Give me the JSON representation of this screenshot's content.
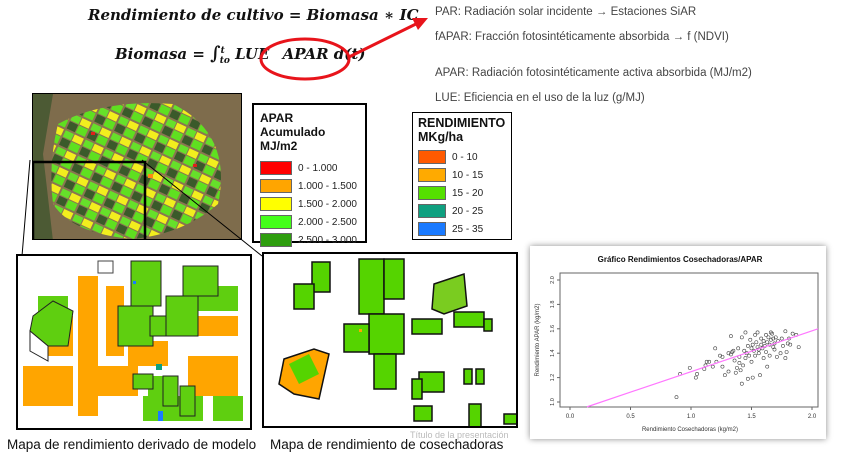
{
  "formulas": {
    "yield": "Rendimiento de cultivo = Biomasa ∗ IC",
    "biomass_lhs": "Biomasa = ",
    "biomass_int": "∫",
    "biomass_sup": "t",
    "biomass_sub": "to",
    "biomass_lue": "LUE",
    "biomass_apar": "APAR d(t)"
  },
  "definitions": [
    "PAR: Radiación solar incidente → Estaciones SiAR",
    "fAPAR: Fracción fotosintéticamente absorbida → f (NDVI)",
    "APAR: Radiación fotosintéticamente activa absorbida (MJ/m2)",
    "LUE: Eficiencia en el uso de la luz (g/MJ)"
  ],
  "legend_apar": {
    "title": "APAR Acumulado",
    "unit": "MJ/m2",
    "items": [
      {
        "label": "0 - 1.000",
        "color": "#ff0000"
      },
      {
        "label": "1.000 - 1.500",
        "color": "#ffa500"
      },
      {
        "label": "1.500 - 2.000",
        "color": "#ffff00"
      },
      {
        "label": "2.000 - 2.500",
        "color": "#44ff1a"
      },
      {
        "label": "2.500 - 3.000",
        "color": "#2e9e0e"
      }
    ]
  },
  "legend_rend": {
    "title": "RENDIMIENTO",
    "unit": "MKg/ha",
    "items": [
      {
        "label": "0 - 10",
        "color": "#ff5a00"
      },
      {
        "label": "10 - 15",
        "color": "#ffaa00"
      },
      {
        "label": "15 - 20",
        "color": "#55e000"
      },
      {
        "label": "20 - 25",
        "color": "#0fa080"
      },
      {
        "label": "25 - 35",
        "color": "#1a7aff"
      }
    ]
  },
  "captions": {
    "model_map": "Mapa de rendimiento derivado de modelo",
    "harvester_map": "Mapa de rendimiento de cosechadoras",
    "watermark": "Título de la presentación"
  },
  "chart_data": {
    "type": "scatter",
    "title": "Gráfico Rendimientos Cosechadoras/APAR",
    "xlabel": "Rendimiento Cosechadoras (kg/m2)",
    "ylabel": "Rendimiento APAR (kg/m2)",
    "xlim": [
      0.0,
      2.0
    ],
    "ylim": [
      1.0,
      2.0
    ],
    "xticks": [
      "0.0",
      "0.5",
      "1.0",
      "1.5",
      "2.0"
    ],
    "yticks": [
      "1.0",
      "1.2",
      "1.4",
      "1.6",
      "1.8",
      "2.0"
    ],
    "regression_line": {
      "color": "#ff66ff",
      "x": [
        0.14,
        2.08
      ],
      "y": [
        0.96,
        1.6
      ]
    },
    "points": [
      [
        0.88,
        1.04
      ],
      [
        0.91,
        1.23
      ],
      [
        0.99,
        1.28
      ],
      [
        1.04,
        1.2
      ],
      [
        1.05,
        1.23
      ],
      [
        1.11,
        1.27
      ],
      [
        1.12,
        1.3
      ],
      [
        1.13,
        1.33
      ],
      [
        1.15,
        1.33
      ],
      [
        1.18,
        1.29
      ],
      [
        1.2,
        1.44
      ],
      [
        1.21,
        1.33
      ],
      [
        1.24,
        1.38
      ],
      [
        1.26,
        1.37
      ],
      [
        1.26,
        1.29
      ],
      [
        1.28,
        1.22
      ],
      [
        1.31,
        1.4
      ],
      [
        1.31,
        1.25
      ],
      [
        1.33,
        1.54
      ],
      [
        1.33,
        1.39
      ],
      [
        1.34,
        1.41
      ],
      [
        1.35,
        1.42
      ],
      [
        1.36,
        1.34
      ],
      [
        1.37,
        1.24
      ],
      [
        1.38,
        1.28
      ],
      [
        1.39,
        1.44
      ],
      [
        1.4,
        1.32
      ],
      [
        1.4,
        1.37
      ],
      [
        1.41,
        1.26
      ],
      [
        1.42,
        1.53
      ],
      [
        1.42,
        1.15
      ],
      [
        1.43,
        1.3
      ],
      [
        1.44,
        1.42
      ],
      [
        1.45,
        1.57
      ],
      [
        1.45,
        1.36
      ],
      [
        1.46,
        1.4
      ],
      [
        1.47,
        1.19
      ],
      [
        1.47,
        1.46
      ],
      [
        1.48,
        1.38
      ],
      [
        1.49,
        1.51
      ],
      [
        1.5,
        1.33
      ],
      [
        1.5,
        1.44
      ],
      [
        1.51,
        1.2
      ],
      [
        1.51,
        1.47
      ],
      [
        1.52,
        1.42
      ],
      [
        1.53,
        1.55
      ],
      [
        1.53,
        1.38
      ],
      [
        1.54,
        1.49
      ],
      [
        1.55,
        1.57
      ],
      [
        1.55,
        1.45
      ],
      [
        1.56,
        1.43
      ],
      [
        1.56,
        1.4
      ],
      [
        1.57,
        1.22
      ],
      [
        1.58,
        1.47
      ],
      [
        1.58,
        1.52
      ],
      [
        1.59,
        1.44
      ],
      [
        1.6,
        1.5
      ],
      [
        1.6,
        1.36
      ],
      [
        1.61,
        1.46
      ],
      [
        1.62,
        1.55
      ],
      [
        1.62,
        1.41
      ],
      [
        1.63,
        1.29
      ],
      [
        1.63,
        1.49
      ],
      [
        1.64,
        1.53
      ],
      [
        1.65,
        1.47
      ],
      [
        1.65,
        1.38
      ],
      [
        1.66,
        1.57
      ],
      [
        1.66,
        1.51
      ],
      [
        1.67,
        1.56
      ],
      [
        1.68,
        1.45
      ],
      [
        1.68,
        1.52
      ],
      [
        1.69,
        1.43
      ],
      [
        1.69,
        1.48
      ],
      [
        1.7,
        1.53
      ],
      [
        1.71,
        1.37
      ],
      [
        1.72,
        1.5
      ],
      [
        1.74,
        1.4
      ],
      [
        1.75,
        1.52
      ],
      [
        1.76,
        1.46
      ],
      [
        1.78,
        1.58
      ],
      [
        1.78,
        1.36
      ],
      [
        1.79,
        1.41
      ],
      [
        1.8,
        1.48
      ],
      [
        1.81,
        1.52
      ],
      [
        1.82,
        1.47
      ],
      [
        1.84,
        1.56
      ],
      [
        1.87,
        1.55
      ],
      [
        1.89,
        1.45
      ]
    ]
  }
}
